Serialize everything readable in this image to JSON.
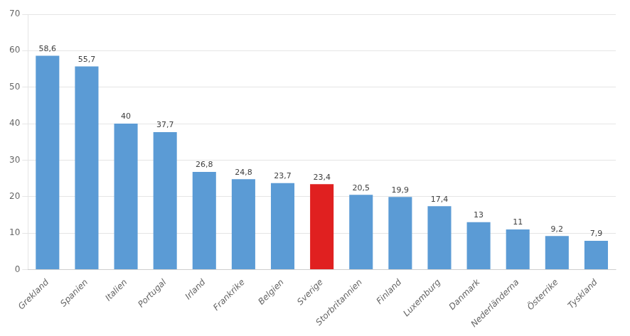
{
  "chart_data": {
    "type": "bar",
    "categories": [
      "Grekland",
      "Spanien",
      "Italien",
      "Portugal",
      "Irland",
      "Frankrike",
      "Belgien",
      "Sverige",
      "Storbritannien",
      "Finland",
      "Luxemburg",
      "Danmark",
      "Nederländerna",
      "Österrike",
      "Tyskland"
    ],
    "values": [
      58.6,
      55.7,
      40.0,
      37.7,
      26.8,
      24.8,
      23.7,
      23.4,
      20.5,
      19.9,
      17.4,
      13.0,
      11.0,
      9.2,
      7.9
    ],
    "value_labels": [
      "58,6",
      "55,7",
      "40",
      "37,7",
      "26,8",
      "24,8",
      "23,7",
      "23,4",
      "20,5",
      "19,9",
      "17,4",
      "13",
      "11",
      "9,2",
      "7,9"
    ],
    "colors": [
      "#5b9bd5",
      "#5b9bd5",
      "#5b9bd5",
      "#5b9bd5",
      "#5b9bd5",
      "#5b9bd5",
      "#5b9bd5",
      "#e02020",
      "#5b9bd5",
      "#5b9bd5",
      "#5b9bd5",
      "#5b9bd5",
      "#5b9bd5",
      "#5b9bd5",
      "#5b9bd5"
    ],
    "ylim": [
      0,
      70
    ],
    "yticks": [
      0,
      10,
      20,
      30,
      40,
      50,
      60,
      70
    ],
    "grid": true,
    "data_labels": true
  }
}
